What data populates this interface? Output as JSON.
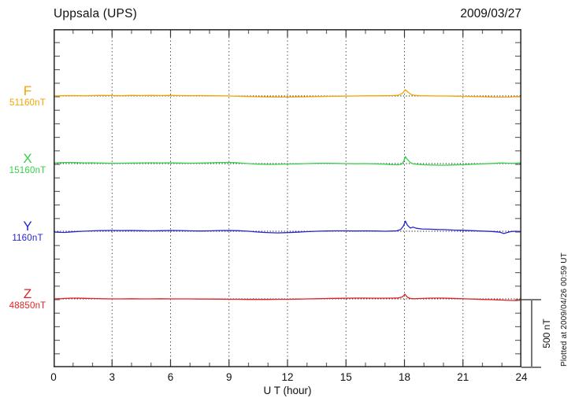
{
  "header": {
    "title": "Uppsala (UPS)",
    "date": "2009/03/27"
  },
  "axes": {
    "xlabel": "U T (hour)",
    "hour_ticks": [
      0,
      3,
      6,
      9,
      12,
      15,
      18,
      21,
      24
    ],
    "grid_hours": [
      3,
      6,
      9,
      12,
      15,
      18,
      21
    ],
    "xlim": [
      0,
      24
    ]
  },
  "scale_bar": {
    "label": "500 nT",
    "nT": 500
  },
  "footer": {
    "plotted_at": "Plotted at 2009/04/26 00:59 UT"
  },
  "chart_data": {
    "type": "line",
    "title": "Uppsala (UPS)",
    "date": "2009/03/27",
    "xlabel": "U T (hour)",
    "xlim": [
      0,
      24
    ],
    "x_ticks": [
      0,
      3,
      6,
      9,
      12,
      15,
      18,
      21,
      24
    ],
    "grid": "vertical-dotted-every-3h",
    "scale_bar_nT": 500,
    "note": "Magnetogram; each series plotted as offset (nT) from its labeled baseline value",
    "series": [
      {
        "name": "F",
        "baseline_label": "51160nT",
        "baseline_nT": 51160,
        "color": "#F5A200",
        "points": [
          [
            0,
            0
          ],
          [
            0.5,
            2
          ],
          [
            1,
            3
          ],
          [
            1.5,
            1
          ],
          [
            2,
            3
          ],
          [
            2.5,
            4
          ],
          [
            3,
            3
          ],
          [
            3.5,
            2
          ],
          [
            4,
            4
          ],
          [
            4.5,
            3
          ],
          [
            5,
            4
          ],
          [
            5.5,
            3
          ],
          [
            6,
            4
          ],
          [
            6.5,
            3
          ],
          [
            7,
            2
          ],
          [
            7.5,
            3
          ],
          [
            8,
            2
          ],
          [
            8.5,
            1
          ],
          [
            9,
            0
          ],
          [
            9.5,
            -2
          ],
          [
            10,
            -4
          ],
          [
            10.5,
            -6
          ],
          [
            11,
            -7
          ],
          [
            11.5,
            -8
          ],
          [
            12,
            -8
          ],
          [
            12.5,
            -7
          ],
          [
            13,
            -6
          ],
          [
            13.5,
            -4
          ],
          [
            14,
            -3
          ],
          [
            14.5,
            -2
          ],
          [
            15,
            -1
          ],
          [
            15.5,
            0
          ],
          [
            16,
            1
          ],
          [
            16.5,
            1
          ],
          [
            17,
            2
          ],
          [
            17.4,
            3
          ],
          [
            17.7,
            6
          ],
          [
            17.9,
            20
          ],
          [
            18.05,
            46
          ],
          [
            18.2,
            26
          ],
          [
            18.35,
            10
          ],
          [
            18.5,
            5
          ],
          [
            18.8,
            2
          ],
          [
            19.2,
            1
          ],
          [
            19.6,
            0
          ],
          [
            20,
            0
          ],
          [
            20.5,
            -1
          ],
          [
            21,
            -3
          ],
          [
            21.5,
            -4
          ],
          [
            22,
            -6
          ],
          [
            22.5,
            -8
          ],
          [
            23,
            -9
          ],
          [
            23.4,
            -8
          ],
          [
            23.7,
            -5
          ],
          [
            24,
            -4
          ]
        ]
      },
      {
        "name": "X",
        "baseline_label": "15160nT",
        "baseline_nT": 15160,
        "color": "#35D04A",
        "points": [
          [
            0,
            5
          ],
          [
            0.4,
            7
          ],
          [
            0.8,
            9
          ],
          [
            1.2,
            7
          ],
          [
            1.6,
            5
          ],
          [
            2,
            6
          ],
          [
            2.5,
            4
          ],
          [
            3,
            2
          ],
          [
            3.5,
            3
          ],
          [
            4,
            4
          ],
          [
            4.5,
            5
          ],
          [
            5,
            6
          ],
          [
            5.5,
            5
          ],
          [
            6,
            6
          ],
          [
            6.5,
            4
          ],
          [
            7,
            3
          ],
          [
            7.5,
            4
          ],
          [
            8,
            6
          ],
          [
            8.5,
            8
          ],
          [
            9,
            9
          ],
          [
            9.3,
            7
          ],
          [
            9.7,
            3
          ],
          [
            10,
            0
          ],
          [
            10.5,
            -4
          ],
          [
            11,
            -6
          ],
          [
            11.5,
            -5
          ],
          [
            12,
            -3
          ],
          [
            12.5,
            -2
          ],
          [
            13,
            0
          ],
          [
            13.5,
            2
          ],
          [
            14,
            3
          ],
          [
            14.5,
            1
          ],
          [
            15,
            0
          ],
          [
            15.5,
            -1
          ],
          [
            16,
            0
          ],
          [
            16.5,
            -2
          ],
          [
            17,
            -4
          ],
          [
            17.4,
            -8
          ],
          [
            17.7,
            -9
          ],
          [
            17.85,
            -4
          ],
          [
            17.95,
            14
          ],
          [
            18.05,
            52
          ],
          [
            18.15,
            30
          ],
          [
            18.3,
            8
          ],
          [
            18.45,
            -2
          ],
          [
            18.7,
            -6
          ],
          [
            19,
            -9
          ],
          [
            19.5,
            -11
          ],
          [
            20,
            -12
          ],
          [
            20.5,
            -10
          ],
          [
            21,
            -8
          ],
          [
            21.5,
            -5
          ],
          [
            22,
            -2
          ],
          [
            22.5,
            1
          ],
          [
            23,
            5
          ],
          [
            23.3,
            3
          ],
          [
            23.6,
            2
          ],
          [
            24,
            6
          ]
        ]
      },
      {
        "name": "Y",
        "baseline_label": "1160nT",
        "baseline_nT": 1160,
        "color": "#2525CF",
        "points": [
          [
            0,
            -6
          ],
          [
            0.3,
            -8
          ],
          [
            0.6,
            -9
          ],
          [
            1,
            -4
          ],
          [
            1.5,
            0
          ],
          [
            2,
            3
          ],
          [
            2.5,
            5
          ],
          [
            3,
            6
          ],
          [
            3.5,
            5
          ],
          [
            4,
            6
          ],
          [
            4.5,
            4
          ],
          [
            5,
            3
          ],
          [
            5.5,
            4
          ],
          [
            6,
            6
          ],
          [
            6.5,
            5
          ],
          [
            7,
            3
          ],
          [
            7.5,
            2
          ],
          [
            8,
            3
          ],
          [
            8.5,
            5
          ],
          [
            9,
            6
          ],
          [
            9.5,
            4
          ],
          [
            10,
            0
          ],
          [
            10.4,
            -5
          ],
          [
            10.8,
            -9
          ],
          [
            11.2,
            -11
          ],
          [
            11.5,
            -12
          ],
          [
            12,
            -10
          ],
          [
            12.5,
            -7
          ],
          [
            13,
            -3
          ],
          [
            13.5,
            0
          ],
          [
            14,
            2
          ],
          [
            14.5,
            3
          ],
          [
            15,
            3
          ],
          [
            15.5,
            2
          ],
          [
            16,
            3
          ],
          [
            16.5,
            2
          ],
          [
            17,
            0
          ],
          [
            17.3,
            1
          ],
          [
            17.6,
            3
          ],
          [
            17.8,
            12
          ],
          [
            17.95,
            40
          ],
          [
            18.05,
            75
          ],
          [
            18.15,
            45
          ],
          [
            18.3,
            24
          ],
          [
            18.45,
            30
          ],
          [
            18.6,
            22
          ],
          [
            18.9,
            17
          ],
          [
            19.3,
            15
          ],
          [
            19.7,
            13
          ],
          [
            20,
            12
          ],
          [
            20.5,
            9
          ],
          [
            21,
            7
          ],
          [
            21.5,
            4
          ],
          [
            22,
            1
          ],
          [
            22.5,
            -2
          ],
          [
            22.9,
            -7
          ],
          [
            23.1,
            -17
          ],
          [
            23.3,
            -8
          ],
          [
            23.5,
            -2
          ],
          [
            23.7,
            0
          ],
          [
            24,
            -3
          ]
        ]
      },
      {
        "name": "Z",
        "baseline_label": "48850nT",
        "baseline_nT": 48850,
        "color": "#E02222",
        "points": [
          [
            0,
            0
          ],
          [
            0.4,
            2
          ],
          [
            0.8,
            5
          ],
          [
            1.2,
            6
          ],
          [
            1.6,
            4
          ],
          [
            2,
            3
          ],
          [
            2.5,
            1
          ],
          [
            3,
            0
          ],
          [
            3.5,
            0
          ],
          [
            4,
            1
          ],
          [
            4.5,
            0
          ],
          [
            5,
            0
          ],
          [
            5.5,
            1
          ],
          [
            6,
            0
          ],
          [
            6.5,
            0
          ],
          [
            7,
            0
          ],
          [
            7.5,
            -1
          ],
          [
            8,
            -1
          ],
          [
            8.5,
            -2
          ],
          [
            9,
            -3
          ],
          [
            9.5,
            -3
          ],
          [
            10,
            -4
          ],
          [
            10.5,
            -4
          ],
          [
            11,
            -4
          ],
          [
            11.5,
            -3
          ],
          [
            12,
            -3
          ],
          [
            12.5,
            -2
          ],
          [
            13,
            0
          ],
          [
            13.5,
            1
          ],
          [
            14,
            3
          ],
          [
            14.5,
            4
          ],
          [
            15,
            5
          ],
          [
            15.5,
            6
          ],
          [
            16,
            6
          ],
          [
            16.5,
            5
          ],
          [
            17,
            5
          ],
          [
            17.4,
            6
          ],
          [
            17.7,
            7
          ],
          [
            17.9,
            15
          ],
          [
            18.02,
            35
          ],
          [
            18.15,
            12
          ],
          [
            18.3,
            3
          ],
          [
            18.5,
            1
          ],
          [
            18.8,
            3
          ],
          [
            19.2,
            5
          ],
          [
            19.6,
            6
          ],
          [
            20,
            6
          ],
          [
            20.4,
            4
          ],
          [
            20.8,
            2
          ],
          [
            21.2,
            0
          ],
          [
            21.6,
            -2
          ],
          [
            22,
            -4
          ],
          [
            22.5,
            -6
          ],
          [
            23,
            -9
          ],
          [
            23.4,
            -11
          ],
          [
            23.7,
            -12
          ],
          [
            24,
            -9
          ]
        ]
      }
    ]
  }
}
